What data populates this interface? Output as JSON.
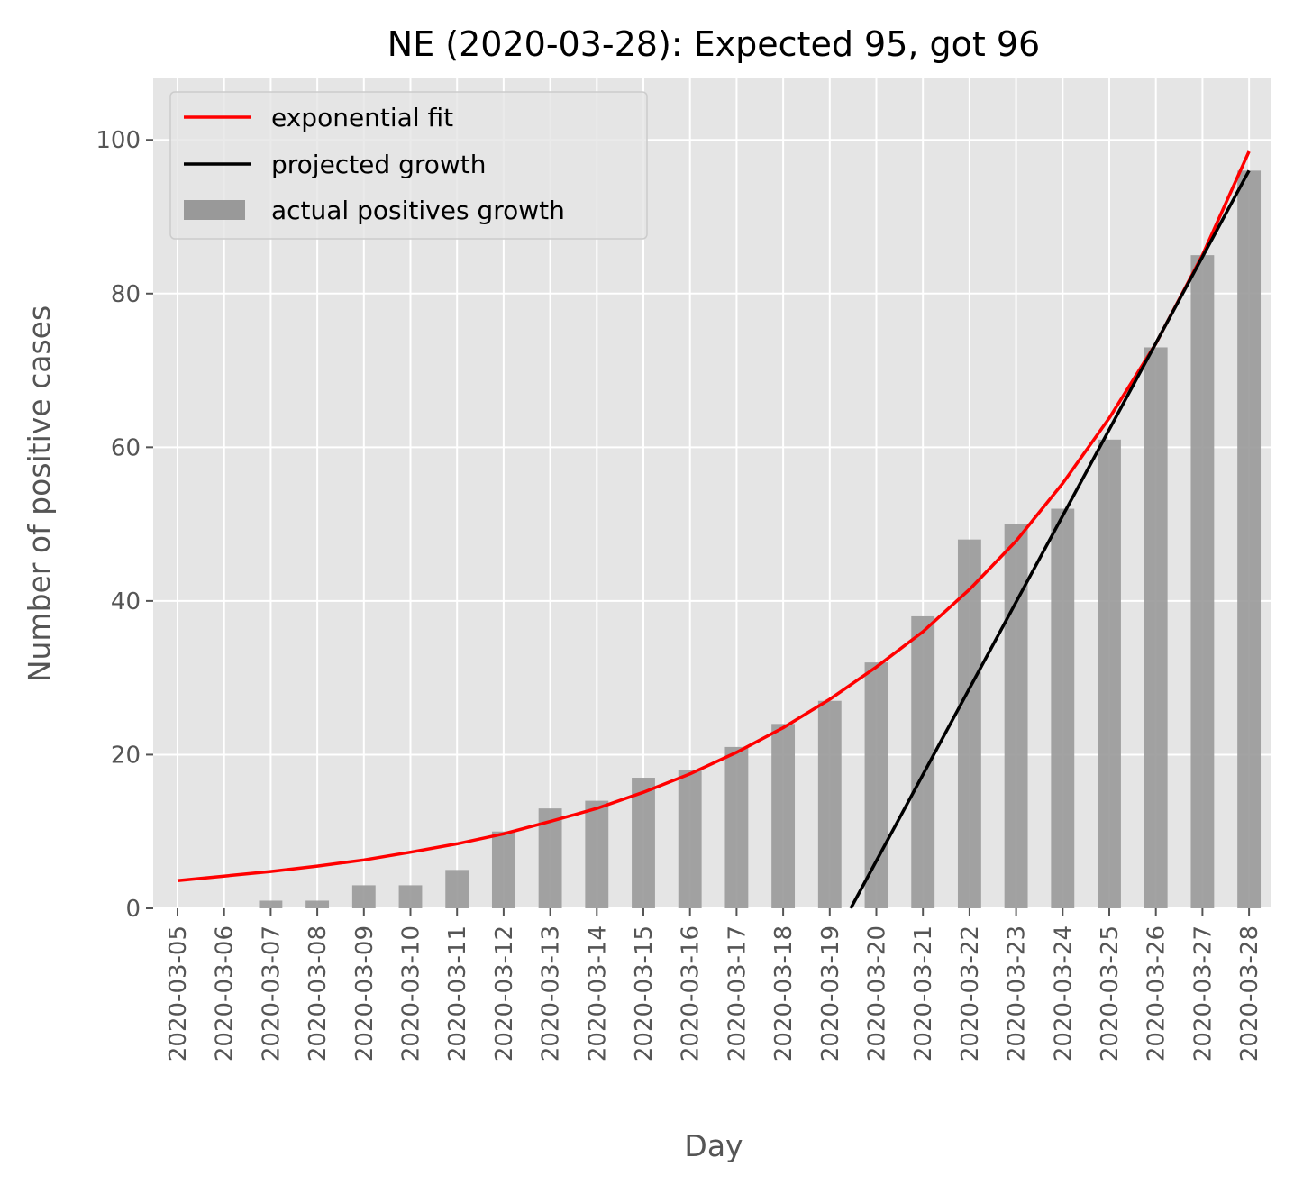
{
  "chart_data": {
    "type": "bar",
    "title": "NE (2020-03-28): Expected 95, got 96",
    "xlabel": "Day",
    "ylabel": "Number of positive cases",
    "ylim": [
      0,
      108
    ],
    "yticks": [
      0,
      20,
      40,
      60,
      80,
      100
    ],
    "grid": true,
    "legend_position": "upper-left",
    "categories": [
      "2020-03-05",
      "2020-03-06",
      "2020-03-07",
      "2020-03-08",
      "2020-03-09",
      "2020-03-10",
      "2020-03-11",
      "2020-03-12",
      "2020-03-13",
      "2020-03-14",
      "2020-03-15",
      "2020-03-16",
      "2020-03-17",
      "2020-03-18",
      "2020-03-19",
      "2020-03-20",
      "2020-03-21",
      "2020-03-22",
      "2020-03-23",
      "2020-03-24",
      "2020-03-25",
      "2020-03-26",
      "2020-03-27",
      "2020-03-28"
    ],
    "series": [
      {
        "name": "actual positives growth",
        "kind": "bar",
        "color": "#999999",
        "values": [
          0,
          0,
          1,
          1,
          3,
          3,
          5,
          10,
          13,
          14,
          17,
          18,
          21,
          24,
          27,
          32,
          38,
          48,
          50,
          52,
          61,
          73,
          85,
          96
        ]
      },
      {
        "name": "exponential fit",
        "kind": "line",
        "color": "#ff0000",
        "values": [
          3.6,
          4.2,
          4.8,
          5.5,
          6.3,
          7.3,
          8.4,
          9.7,
          11.3,
          13.0,
          15.1,
          17.5,
          20.3,
          23.5,
          27.2,
          31.4,
          36.0,
          41.5,
          47.8,
          55.3,
          63.8,
          73.5,
          85.0,
          98.5
        ]
      },
      {
        "name": "projected growth",
        "kind": "line",
        "color": "#000000",
        "x": [
          14.45,
          23
        ],
        "values": [
          0,
          96
        ]
      }
    ]
  }
}
